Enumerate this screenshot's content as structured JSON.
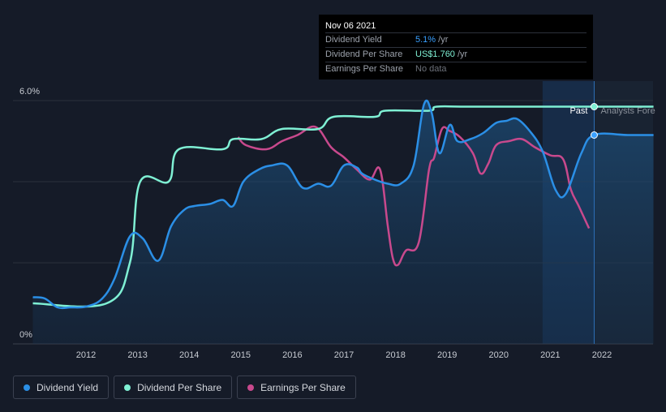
{
  "tooltip": {
    "date": "Nov 06 2021",
    "rows": [
      {
        "label": "Dividend Yield",
        "value": "5.1%",
        "unit": " /yr"
      },
      {
        "label": "Dividend Per Share",
        "value": "US$1.760",
        "unit": " /yr"
      },
      {
        "label": "Earnings Per Share",
        "value": "No data",
        "unit": ""
      }
    ]
  },
  "legend": [
    {
      "label": "Dividend Yield",
      "color": "#2b8fe6"
    },
    {
      "label": "Dividend Per Share",
      "color": "#7ff0d4"
    },
    {
      "label": "Earnings Per Share",
      "color": "#c8498d"
    }
  ],
  "chart_data": {
    "type": "line",
    "y_tick_labels": [
      "6.0%",
      "0%"
    ],
    "x_tick_labels": [
      "2012",
      "2013",
      "2014",
      "2015",
      "2016",
      "2017",
      "2018",
      "2019",
      "2020",
      "2021",
      "2022"
    ],
    "x_range": [
      2011,
      2023
    ],
    "y_range": [
      0,
      6
    ],
    "annotations": {
      "past": "Past",
      "forecast": "Analysts Fore"
    },
    "past_marker_x": 2021.85,
    "forecast_shade_start": 2020.85,
    "series": [
      {
        "name": "Dividend Yield",
        "color": "#2b8fe6",
        "x": [
          2010.97,
          2011.2,
          2011.45,
          2011.7,
          2012.0,
          2012.3,
          2012.55,
          2012.85,
          2013.1,
          2013.4,
          2013.65,
          2013.9,
          2014.1,
          2014.4,
          2014.65,
          2014.85,
          2015.05,
          2015.35,
          2015.6,
          2015.9,
          2016.2,
          2016.5,
          2016.75,
          2017.0,
          2017.25,
          2017.35,
          2017.6,
          2017.85,
          2018.1,
          2018.35,
          2018.55,
          2018.7,
          2018.85,
          2019.05,
          2019.2,
          2019.45,
          2019.7,
          2019.95,
          2020.15,
          2020.35,
          2020.6,
          2020.85,
          2021.1,
          2021.3,
          2021.6,
          2021.85,
          2022.5,
          2023.0
        ],
        "y": [
          1.15,
          1.12,
          0.9,
          0.9,
          0.92,
          1.1,
          1.6,
          2.65,
          2.6,
          2.05,
          2.9,
          3.3,
          3.4,
          3.45,
          3.55,
          3.4,
          4.0,
          4.3,
          4.4,
          4.4,
          3.85,
          3.95,
          3.9,
          4.4,
          4.35,
          4.2,
          4.05,
          3.95,
          3.95,
          4.4,
          5.9,
          5.7,
          4.7,
          5.4,
          5.0,
          5.05,
          5.2,
          5.45,
          5.5,
          5.55,
          5.25,
          4.75,
          3.8,
          3.7,
          4.7,
          5.15,
          5.15,
          5.15
        ]
      },
      {
        "name": "Dividend Per Share",
        "color": "#7ff0d4",
        "x": [
          2010.97,
          2012.4,
          2012.85,
          2013.05,
          2013.6,
          2013.8,
          2014.65,
          2014.85,
          2015.4,
          2015.8,
          2016.5,
          2016.8,
          2017.6,
          2017.8,
          2018.65,
          2018.8,
          2019.5,
          2021.85,
          2023.0
        ],
        "y": [
          1.0,
          1.0,
          2.0,
          4.0,
          4.0,
          4.8,
          4.8,
          5.05,
          5.05,
          5.3,
          5.3,
          5.6,
          5.6,
          5.75,
          5.75,
          5.85,
          5.85,
          5.85,
          5.85
        ]
      },
      {
        "name": "Earnings Per Share",
        "color": "#c8498d",
        "x": [
          2014.95,
          2015.1,
          2015.5,
          2015.8,
          2016.1,
          2016.45,
          2016.75,
          2017.0,
          2017.25,
          2017.5,
          2017.7,
          2017.85,
          2017.95,
          2018.05,
          2018.2,
          2018.45,
          2018.65,
          2018.75,
          2018.9,
          2019.05,
          2019.25,
          2019.5,
          2019.65,
          2019.8,
          2019.95,
          2020.2,
          2020.45,
          2020.7,
          2021.0,
          2021.25,
          2021.4,
          2021.55,
          2021.75
        ],
        "y": [
          5.1,
          4.9,
          4.8,
          5.0,
          5.15,
          5.35,
          4.85,
          4.6,
          4.3,
          4.05,
          4.3,
          2.9,
          2.1,
          1.95,
          2.3,
          2.5,
          4.3,
          4.6,
          5.3,
          5.25,
          5.1,
          4.7,
          4.2,
          4.45,
          4.9,
          5.0,
          5.05,
          4.85,
          4.65,
          4.55,
          3.8,
          3.4,
          2.85
        ]
      }
    ]
  }
}
